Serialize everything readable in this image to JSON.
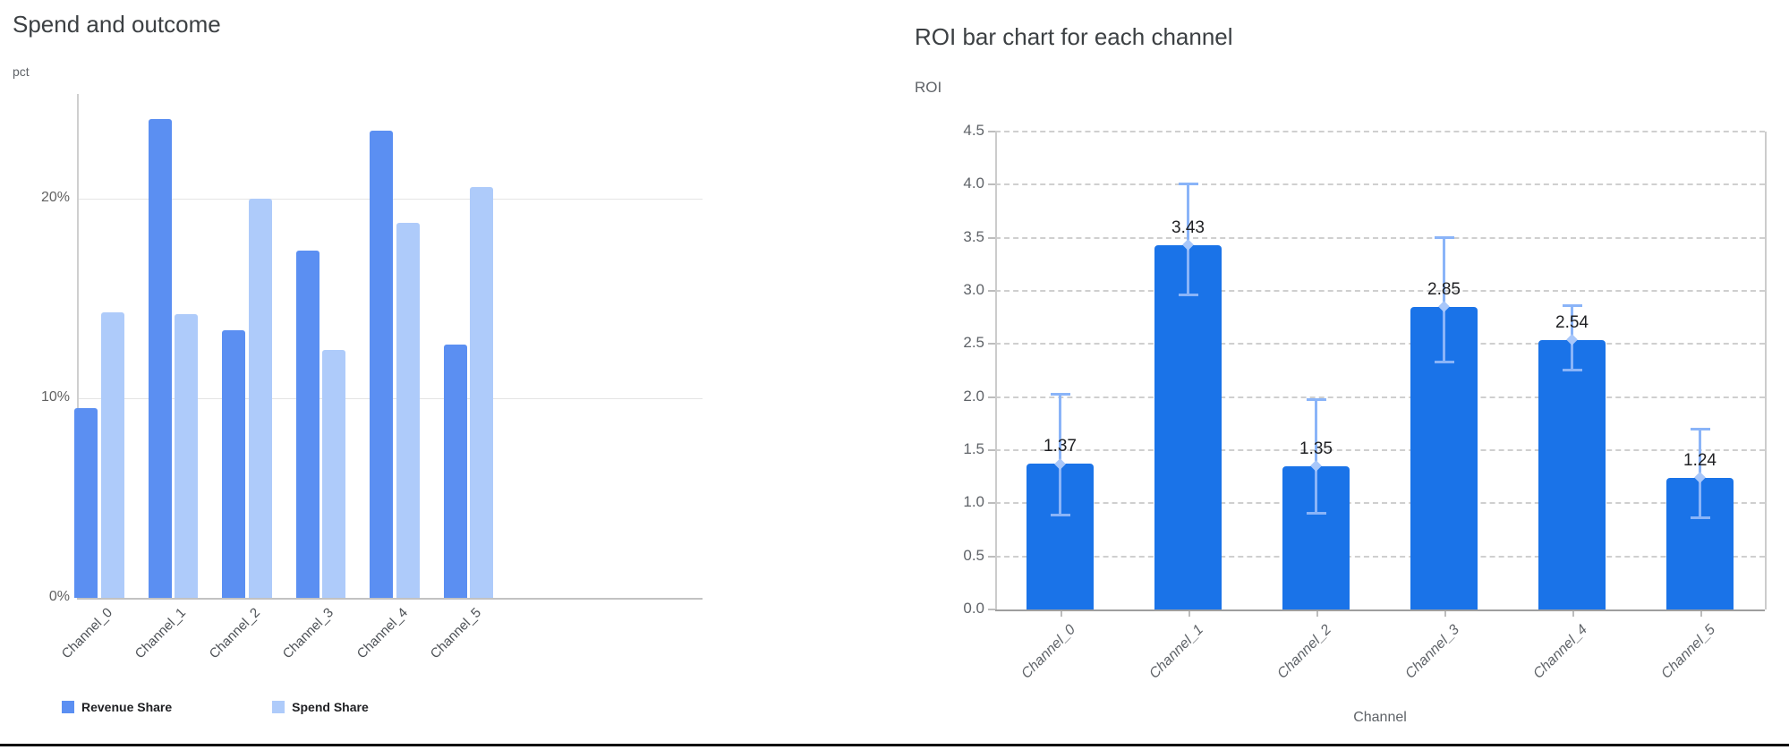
{
  "page": {
    "background": "#ffffff",
    "bottom_rule_color": "#0a0a0a"
  },
  "chart_data": [
    {
      "type": "bar",
      "title": "Spend and outcome",
      "ylabel": "pct",
      "xlabel": "",
      "categories": [
        "Channel_0",
        "Channel_1",
        "Channel_2",
        "Channel_3",
        "Channel_4",
        "Channel_5"
      ],
      "series": [
        {
          "name": "Revenue Share",
          "color": "#5b8ff2",
          "values": [
            9.5,
            24.0,
            13.4,
            17.4,
            23.4,
            12.7
          ]
        },
        {
          "name": "Spend Share",
          "color": "#aecbfa",
          "values": [
            14.3,
            14.2,
            20.0,
            12.4,
            18.8,
            20.6
          ]
        }
      ],
      "y_tick_labels": [
        "0%",
        "10%",
        "20%"
      ],
      "y_tick_values": [
        0,
        10,
        20
      ],
      "ylim": [
        0,
        25.5
      ],
      "grid": true,
      "legend_position": "bottom",
      "x_labels_rotated_degrees": 45
    },
    {
      "type": "bar",
      "title": "ROI bar chart for each channel",
      "ylabel": "ROI",
      "xlabel": "Channel",
      "categories": [
        "Channel_0",
        "Channel_1",
        "Channel_2",
        "Channel_3",
        "Channel_4",
        "Channel_5"
      ],
      "values": [
        1.37,
        3.43,
        1.35,
        2.85,
        2.54,
        1.24
      ],
      "value_labels": [
        "1.37",
        "3.43",
        "1.35",
        "2.85",
        "2.54",
        "1.24"
      ],
      "error_upper": [
        2.04,
        4.02,
        1.99,
        3.51,
        2.87,
        1.71
      ],
      "error_lower": [
        0.88,
        2.95,
        0.89,
        2.32,
        2.24,
        0.85
      ],
      "bar_color": "#1a73e8",
      "error_bar_color": "#8ab4f8",
      "error_marker_color": "#a8c7fa",
      "y_tick_labels": [
        "0.0",
        "0.5",
        "1.0",
        "1.5",
        "2.0",
        "2.5",
        "3.0",
        "3.5",
        "4.0",
        "4.5"
      ],
      "y_tick_values": [
        0,
        0.5,
        1,
        1.5,
        2,
        2.5,
        3,
        3.5,
        4,
        4.5
      ],
      "ylim": [
        0,
        4.5
      ],
      "grid": "dashed",
      "legend_position": "none",
      "x_labels_rotated_degrees": 45,
      "x_labels_italic": true
    }
  ]
}
